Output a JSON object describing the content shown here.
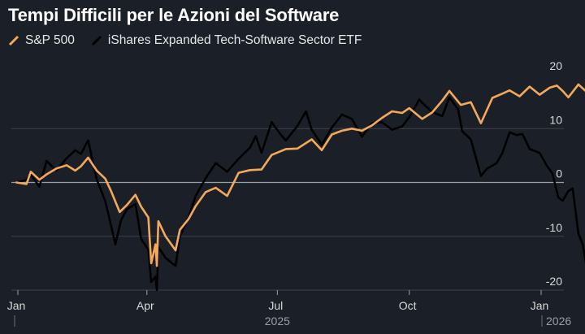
{
  "chart_data": {
    "type": "line",
    "title": "Tempi Difficili per le Azioni del Software",
    "xlabel": "",
    "ylabel": "",
    "ylim": [
      -20,
      20
    ],
    "y_ticks": [
      20,
      10,
      0,
      -10,
      -20
    ],
    "x_ticks": [
      {
        "label": "Jan",
        "x": "2025-01-01"
      },
      {
        "label": "Apr",
        "x": "2025-04-01"
      },
      {
        "label": "Jul",
        "x": "2025-07-01"
      },
      {
        "label": "Oct",
        "x": "2025-10-01"
      },
      {
        "label": "Jan",
        "x": "2026-01-01"
      }
    ],
    "year_labels": [
      {
        "label": "2025",
        "x": "2025-07-01"
      },
      {
        "label": "2026",
        "x": "2026-01-01"
      }
    ],
    "legend_position": "top-left",
    "grid": true,
    "series": [
      {
        "name": "S&P 500",
        "color": "#f4a95a",
        "points": [
          [
            "2024-12-31",
            0.0
          ],
          [
            "2025-01-07",
            -0.3
          ],
          [
            "2025-01-10",
            2.0
          ],
          [
            "2025-01-16",
            0.5
          ],
          [
            "2025-01-21",
            1.5
          ],
          [
            "2025-01-28",
            2.6
          ],
          [
            "2025-02-04",
            3.2
          ],
          [
            "2025-02-10",
            2.2
          ],
          [
            "2025-02-14",
            3.0
          ],
          [
            "2025-02-19",
            4.6
          ],
          [
            "2025-02-25",
            2.2
          ],
          [
            "2025-03-03",
            0.7
          ],
          [
            "2025-03-07",
            -1.6
          ],
          [
            "2025-03-13",
            -5.5
          ],
          [
            "2025-03-18",
            -4.2
          ],
          [
            "2025-03-24",
            -2.3
          ],
          [
            "2025-03-28",
            -4.5
          ],
          [
            "2025-04-02",
            -6.5
          ],
          [
            "2025-04-04",
            -15.0
          ],
          [
            "2025-04-07",
            -11.5
          ],
          [
            "2025-04-08",
            -15.5
          ],
          [
            "2025-04-09",
            -7.2
          ],
          [
            "2025-04-14",
            -10.0
          ],
          [
            "2025-04-21",
            -12.6
          ],
          [
            "2025-04-24",
            -8.8
          ],
          [
            "2025-04-30",
            -6.8
          ],
          [
            "2025-05-05",
            -4.4
          ],
          [
            "2025-05-12",
            -1.8
          ],
          [
            "2025-05-19",
            -1.0
          ],
          [
            "2025-05-27",
            -2.5
          ],
          [
            "2025-06-04",
            1.8
          ],
          [
            "2025-06-12",
            2.3
          ],
          [
            "2025-06-20",
            2.4
          ],
          [
            "2025-06-27",
            5.1
          ],
          [
            "2025-07-07",
            6.2
          ],
          [
            "2025-07-15",
            6.3
          ],
          [
            "2025-07-25",
            8.0
          ],
          [
            "2025-08-01",
            6.0
          ],
          [
            "2025-08-08",
            8.9
          ],
          [
            "2025-08-15",
            9.6
          ],
          [
            "2025-08-22",
            10.0
          ],
          [
            "2025-08-29",
            9.6
          ],
          [
            "2025-09-05",
            10.6
          ],
          [
            "2025-09-12",
            12.0
          ],
          [
            "2025-09-19",
            13.2
          ],
          [
            "2025-09-26",
            12.9
          ],
          [
            "2025-10-01",
            13.8
          ],
          [
            "2025-10-10",
            11.8
          ],
          [
            "2025-10-17",
            13.0
          ],
          [
            "2025-10-24",
            15.2
          ],
          [
            "2025-10-29",
            17.0
          ],
          [
            "2025-11-06",
            14.4
          ],
          [
            "2025-11-13",
            14.9
          ],
          [
            "2025-11-20",
            11.0
          ],
          [
            "2025-11-28",
            15.7
          ],
          [
            "2025-12-05",
            16.5
          ],
          [
            "2025-12-10",
            17.1
          ],
          [
            "2025-12-17",
            16.0
          ],
          [
            "2025-12-24",
            17.8
          ],
          [
            "2025-12-31",
            16.3
          ],
          [
            "2026-01-07",
            17.6
          ],
          [
            "2026-01-12",
            18.0
          ],
          [
            "2026-01-16",
            17.0
          ],
          [
            "2026-01-20",
            15.8
          ],
          [
            "2026-01-27",
            18.2
          ],
          [
            "2026-02-01",
            17.0
          ]
        ]
      },
      {
        "name": "iShares Expanded Tech-Software Sector ETF",
        "color": "#000000",
        "points": [
          [
            "2024-12-31",
            0.0
          ],
          [
            "2025-01-07",
            0.5
          ],
          [
            "2025-01-10",
            1.5
          ],
          [
            "2025-01-16",
            -0.8
          ],
          [
            "2025-01-21",
            4.0
          ],
          [
            "2025-01-24",
            3.2
          ],
          [
            "2025-01-28",
            2.2
          ],
          [
            "2025-02-04",
            4.5
          ],
          [
            "2025-02-10",
            6.0
          ],
          [
            "2025-02-14",
            5.3
          ],
          [
            "2025-02-19",
            7.8
          ],
          [
            "2025-02-25",
            0.6
          ],
          [
            "2025-03-03",
            -3.5
          ],
          [
            "2025-03-07",
            -8.0
          ],
          [
            "2025-03-10",
            -11.5
          ],
          [
            "2025-03-14",
            -7.0
          ],
          [
            "2025-03-18",
            -5.0
          ],
          [
            "2025-03-24",
            -4.0
          ],
          [
            "2025-03-28",
            -10.5
          ],
          [
            "2025-04-02",
            -12.5
          ],
          [
            "2025-04-04",
            -18.5
          ],
          [
            "2025-04-07",
            -17.5
          ],
          [
            "2025-04-08",
            -20.0
          ],
          [
            "2025-04-09",
            -12.0
          ],
          [
            "2025-04-14",
            -14.0
          ],
          [
            "2025-04-21",
            -15.5
          ],
          [
            "2025-04-24",
            -10.0
          ],
          [
            "2025-04-30",
            -6.5
          ],
          [
            "2025-05-05",
            -2.5
          ],
          [
            "2025-05-12",
            0.8
          ],
          [
            "2025-05-19",
            3.6
          ],
          [
            "2025-05-27",
            2.0
          ],
          [
            "2025-06-04",
            4.4
          ],
          [
            "2025-06-12",
            6.5
          ],
          [
            "2025-06-16",
            8.6
          ],
          [
            "2025-06-20",
            5.5
          ],
          [
            "2025-06-27",
            11.2
          ],
          [
            "2025-07-03",
            9.0
          ],
          [
            "2025-07-07",
            7.8
          ],
          [
            "2025-07-15",
            10.5
          ],
          [
            "2025-07-21",
            13.2
          ],
          [
            "2025-07-25",
            9.8
          ],
          [
            "2025-08-01",
            7.0
          ],
          [
            "2025-08-08",
            10.2
          ],
          [
            "2025-08-15",
            12.6
          ],
          [
            "2025-08-22",
            11.8
          ],
          [
            "2025-08-29",
            8.5
          ],
          [
            "2025-09-05",
            11.0
          ],
          [
            "2025-09-12",
            11.2
          ],
          [
            "2025-09-19",
            9.8
          ],
          [
            "2025-09-26",
            10.4
          ],
          [
            "2025-10-01",
            12.1
          ],
          [
            "2025-10-08",
            15.4
          ],
          [
            "2025-10-10",
            14.8
          ],
          [
            "2025-10-17",
            13.1
          ],
          [
            "2025-10-24",
            12.3
          ],
          [
            "2025-10-29",
            15.8
          ],
          [
            "2025-11-04",
            13.6
          ],
          [
            "2025-11-07",
            9.5
          ],
          [
            "2025-11-13",
            8.0
          ],
          [
            "2025-11-20",
            1.2
          ],
          [
            "2025-11-24",
            2.5
          ],
          [
            "2025-12-01",
            3.6
          ],
          [
            "2025-12-05",
            5.5
          ],
          [
            "2025-12-10",
            9.3
          ],
          [
            "2025-12-15",
            8.8
          ],
          [
            "2025-12-19",
            9.0
          ],
          [
            "2025-12-24",
            6.2
          ],
          [
            "2025-12-31",
            5.5
          ],
          [
            "2026-01-05",
            3.1
          ],
          [
            "2026-01-09",
            1.6
          ],
          [
            "2026-01-13",
            -2.8
          ],
          [
            "2026-01-16",
            -3.4
          ],
          [
            "2026-01-20",
            -1.6
          ],
          [
            "2026-01-23",
            -1.1
          ],
          [
            "2026-01-27",
            -9.5
          ],
          [
            "2026-01-30",
            -11.5
          ],
          [
            "2026-02-03",
            -17.6
          ]
        ]
      }
    ]
  }
}
